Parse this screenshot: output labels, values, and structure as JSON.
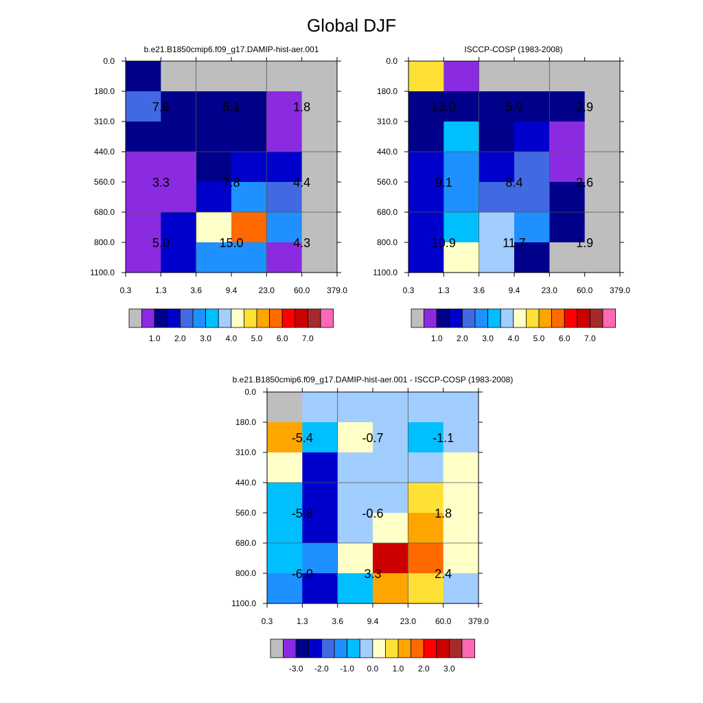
{
  "figure": {
    "title": "Global DJF"
  },
  "chart_data": [
    {
      "type": "heatmap",
      "title": "b.e21.B1850cmip6.f09_g17.DAMIP-hist-aer.001",
      "x_ticks": [
        "0.3",
        "1.3",
        "3.6",
        "9.4",
        "23.0",
        "60.0",
        "379.0"
      ],
      "y_ticks": [
        "0.0",
        "180.0",
        "310.0",
        "440.0",
        "560.0",
        "680.0",
        "800.0",
        "1100.0"
      ],
      "cell_colors": [
        [
          "#00008b",
          "#bebebe",
          "#bebebe",
          "#bebebe",
          "#bebebe",
          "#bebebe"
        ],
        [
          "#4169e1",
          "#00008b",
          "#00008b",
          "#00008b",
          "#8a2be2",
          "#bebebe"
        ],
        [
          "#00008b",
          "#00008b",
          "#00008b",
          "#00008b",
          "#8a2be2",
          "#bebebe"
        ],
        [
          "#8a2be2",
          "#8a2be2",
          "#00008b",
          "#0000cd",
          "#0000cd",
          "#bebebe"
        ],
        [
          "#8a2be2",
          "#8a2be2",
          "#0000cd",
          "#1e90ff",
          "#4169e1",
          "#bebebe"
        ],
        [
          "#8a2be2",
          "#0000cd",
          "#ffffc8",
          "#ff6a00",
          "#1e90ff",
          "#bebebe"
        ],
        [
          "#8a2be2",
          "#0000cd",
          "#1e90ff",
          "#1e90ff",
          "#8a2be2",
          "#bebebe"
        ]
      ],
      "annotations": [
        {
          "x_index": 1,
          "y_index": 1.5,
          "text": "7.6"
        },
        {
          "x_index": 3,
          "y_index": 1.5,
          "text": "5.1"
        },
        {
          "x_index": 5,
          "y_index": 1.5,
          "text": "1.8"
        },
        {
          "x_index": 1,
          "y_index": 4,
          "text": "3.3"
        },
        {
          "x_index": 3,
          "y_index": 4,
          "text": "7.8"
        },
        {
          "x_index": 5,
          "y_index": 4,
          "text": "4.4"
        },
        {
          "x_index": 1,
          "y_index": 6,
          "text": "5.0"
        },
        {
          "x_index": 3,
          "y_index": 6,
          "text": "15.0"
        },
        {
          "x_index": 5,
          "y_index": 6,
          "text": "4.3"
        }
      ],
      "colorbar": {
        "colors": [
          "#bebebe",
          "#8a2be2",
          "#00008b",
          "#0000cd",
          "#4169e1",
          "#1e90ff",
          "#00bfff",
          "#a2cdff",
          "#ffffc8",
          "#ffe135",
          "#ffa500",
          "#ff6a00",
          "#ff0000",
          "#cd0000",
          "#a52a2a",
          "#ff69b4"
        ],
        "labels": [
          {
            "after_box": 2,
            "text": "1.0"
          },
          {
            "after_box": 4,
            "text": "2.0"
          },
          {
            "after_box": 6,
            "text": "3.0"
          },
          {
            "after_box": 8,
            "text": "4.0"
          },
          {
            "after_box": 10,
            "text": "5.0"
          },
          {
            "after_box": 12,
            "text": "6.0"
          },
          {
            "after_box": 14,
            "text": "7.0"
          }
        ]
      }
    },
    {
      "type": "heatmap",
      "title": "ISCCP-COSP (1983-2008)",
      "x_ticks": [
        "0.3",
        "1.3",
        "3.6",
        "9.4",
        "23.0",
        "60.0",
        "379.0"
      ],
      "y_ticks": [
        "0.0",
        "180.0",
        "310.0",
        "440.0",
        "560.0",
        "680.0",
        "800.0",
        "1100.0"
      ],
      "cell_colors": [
        [
          "#ffe135",
          "#8a2be2",
          "#bebebe",
          "#bebebe",
          "#bebebe",
          "#bebebe"
        ],
        [
          "#00008b",
          "#00008b",
          "#00008b",
          "#00008b",
          "#00008b",
          "#bebebe"
        ],
        [
          "#00008b",
          "#00bfff",
          "#00008b",
          "#0000cd",
          "#8a2be2",
          "#bebebe"
        ],
        [
          "#0000cd",
          "#1e90ff",
          "#0000cd",
          "#4169e1",
          "#8a2be2",
          "#bebebe"
        ],
        [
          "#0000cd",
          "#1e90ff",
          "#4169e1",
          "#4169e1",
          "#00008b",
          "#bebebe"
        ],
        [
          "#0000cd",
          "#00bfff",
          "#a2cdff",
          "#1e90ff",
          "#00008b",
          "#bebebe"
        ],
        [
          "#0000cd",
          "#ffffc8",
          "#a2cdff",
          "#00008b",
          "#bebebe",
          "#bebebe"
        ]
      ],
      "annotations": [
        {
          "x_index": 1,
          "y_index": 1.5,
          "text": "13.0"
        },
        {
          "x_index": 3,
          "y_index": 1.5,
          "text": "5.9"
        },
        {
          "x_index": 5,
          "y_index": 1.5,
          "text": "2.9"
        },
        {
          "x_index": 1,
          "y_index": 4,
          "text": "9.1"
        },
        {
          "x_index": 3,
          "y_index": 4,
          "text": "8.4"
        },
        {
          "x_index": 5,
          "y_index": 4,
          "text": "2.6"
        },
        {
          "x_index": 1,
          "y_index": 6,
          "text": "10.9"
        },
        {
          "x_index": 3,
          "y_index": 6,
          "text": "11.7"
        },
        {
          "x_index": 5,
          "y_index": 6,
          "text": "1.9"
        }
      ],
      "colorbar": {
        "colors": [
          "#bebebe",
          "#8a2be2",
          "#00008b",
          "#0000cd",
          "#4169e1",
          "#1e90ff",
          "#00bfff",
          "#a2cdff",
          "#ffffc8",
          "#ffe135",
          "#ffa500",
          "#ff6a00",
          "#ff0000",
          "#cd0000",
          "#a52a2a",
          "#ff69b4"
        ],
        "labels": [
          {
            "after_box": 2,
            "text": "1.0"
          },
          {
            "after_box": 4,
            "text": "2.0"
          },
          {
            "after_box": 6,
            "text": "3.0"
          },
          {
            "after_box": 8,
            "text": "4.0"
          },
          {
            "after_box": 10,
            "text": "5.0"
          },
          {
            "after_box": 12,
            "text": "6.0"
          },
          {
            "after_box": 14,
            "text": "7.0"
          }
        ]
      }
    },
    {
      "type": "heatmap",
      "title": "b.e21.B1850cmip6.f09_g17.DAMIP-hist-aer.001 - ISCCP-COSP (1983-2008)",
      "x_ticks": [
        "0.3",
        "1.3",
        "3.6",
        "9.4",
        "23.0",
        "60.0",
        "379.0"
      ],
      "y_ticks": [
        "0.0",
        "180.0",
        "310.0",
        "440.0",
        "560.0",
        "680.0",
        "800.0",
        "1100.0"
      ],
      "cell_colors": [
        [
          "#bebebe",
          "#a2cdff",
          "#a2cdff",
          "#a2cdff",
          "#a2cdff",
          "#a2cdff"
        ],
        [
          "#ffa500",
          "#00bfff",
          "#ffffc8",
          "#a2cdff",
          "#00bfff",
          "#a2cdff"
        ],
        [
          "#ffffc8",
          "#0000cd",
          "#a2cdff",
          "#a2cdff",
          "#a2cdff",
          "#ffffc8"
        ],
        [
          "#00bfff",
          "#0000cd",
          "#a2cdff",
          "#a2cdff",
          "#ffe135",
          "#ffffc8"
        ],
        [
          "#00bfff",
          "#0000cd",
          "#a2cdff",
          "#ffffc8",
          "#ffa500",
          "#ffffc8"
        ],
        [
          "#00bfff",
          "#1e90ff",
          "#ffffc8",
          "#cd0000",
          "#ff6a00",
          "#ffffc8"
        ],
        [
          "#1e90ff",
          "#0000cd",
          "#00bfff",
          "#ffa500",
          "#ffe135",
          "#a2cdff"
        ]
      ],
      "annotations": [
        {
          "x_index": 1,
          "y_index": 1.5,
          "text": "-5.4"
        },
        {
          "x_index": 3,
          "y_index": 1.5,
          "text": "-0.7"
        },
        {
          "x_index": 5,
          "y_index": 1.5,
          "text": "-1.1"
        },
        {
          "x_index": 1,
          "y_index": 4,
          "text": "-5.8"
        },
        {
          "x_index": 3,
          "y_index": 4,
          "text": "-0.6"
        },
        {
          "x_index": 5,
          "y_index": 4,
          "text": "1.8"
        },
        {
          "x_index": 1,
          "y_index": 6,
          "text": "-6.0"
        },
        {
          "x_index": 3,
          "y_index": 6,
          "text": "3.3"
        },
        {
          "x_index": 5,
          "y_index": 6,
          "text": "2.4"
        }
      ],
      "colorbar": {
        "colors": [
          "#bebebe",
          "#8a2be2",
          "#00008b",
          "#0000cd",
          "#4169e1",
          "#1e90ff",
          "#00bfff",
          "#a2cdff",
          "#ffffc8",
          "#ffe135",
          "#ffa500",
          "#ff6a00",
          "#ff0000",
          "#cd0000",
          "#a52a2a",
          "#ff69b4"
        ],
        "labels": [
          {
            "after_box": 2,
            "text": "-3.0"
          },
          {
            "after_box": 4,
            "text": "-2.0"
          },
          {
            "after_box": 6,
            "text": "-1.0"
          },
          {
            "after_box": 8,
            "text": "0.0"
          },
          {
            "after_box": 10,
            "text": "1.0"
          },
          {
            "after_box": 12,
            "text": "2.0"
          },
          {
            "after_box": 14,
            "text": "3.0"
          }
        ]
      }
    }
  ]
}
